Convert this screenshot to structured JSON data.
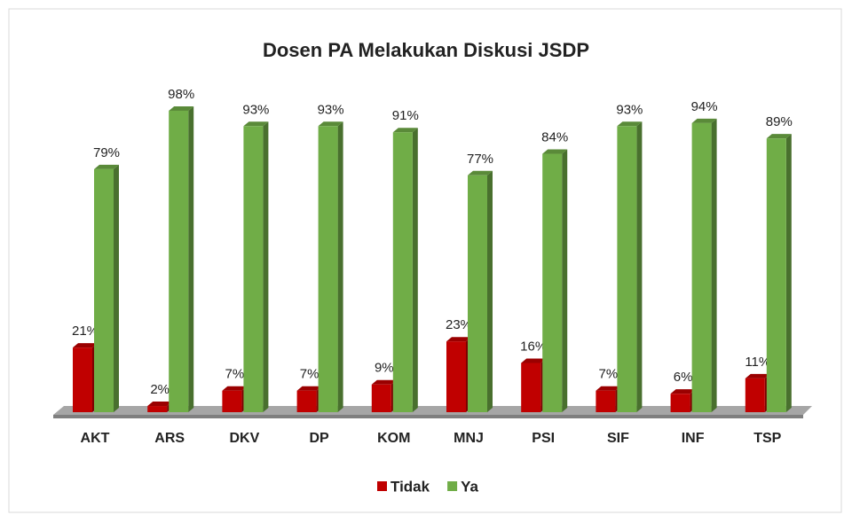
{
  "chart_data": {
    "type": "bar3d",
    "title": "Dosen PA Melakukan Diskusi JSDP",
    "categories": [
      "AKT",
      "ARS",
      "DKV",
      "DP",
      "KOM",
      "MNJ",
      "PSI",
      "SIF",
      "INF",
      "TSP"
    ],
    "series": [
      {
        "name": "Tidak",
        "color": "#c00000",
        "values": [
          21,
          2,
          7,
          7,
          9,
          23,
          16,
          7,
          6,
          11
        ],
        "value_labels": [
          "21%",
          "2%",
          "7%",
          "7%",
          "9%",
          "23%",
          "16%",
          "7%",
          "6%",
          "11%"
        ]
      },
      {
        "name": "Ya",
        "color": "#70ad47",
        "values": [
          79,
          98,
          93,
          93,
          91,
          77,
          84,
          93,
          94,
          89
        ],
        "value_labels": [
          "79%",
          "98%",
          "93%",
          "93%",
          "91%",
          "77%",
          "84%",
          "93%",
          "94%",
          "89%"
        ]
      }
    ],
    "legend": "bottom"
  }
}
